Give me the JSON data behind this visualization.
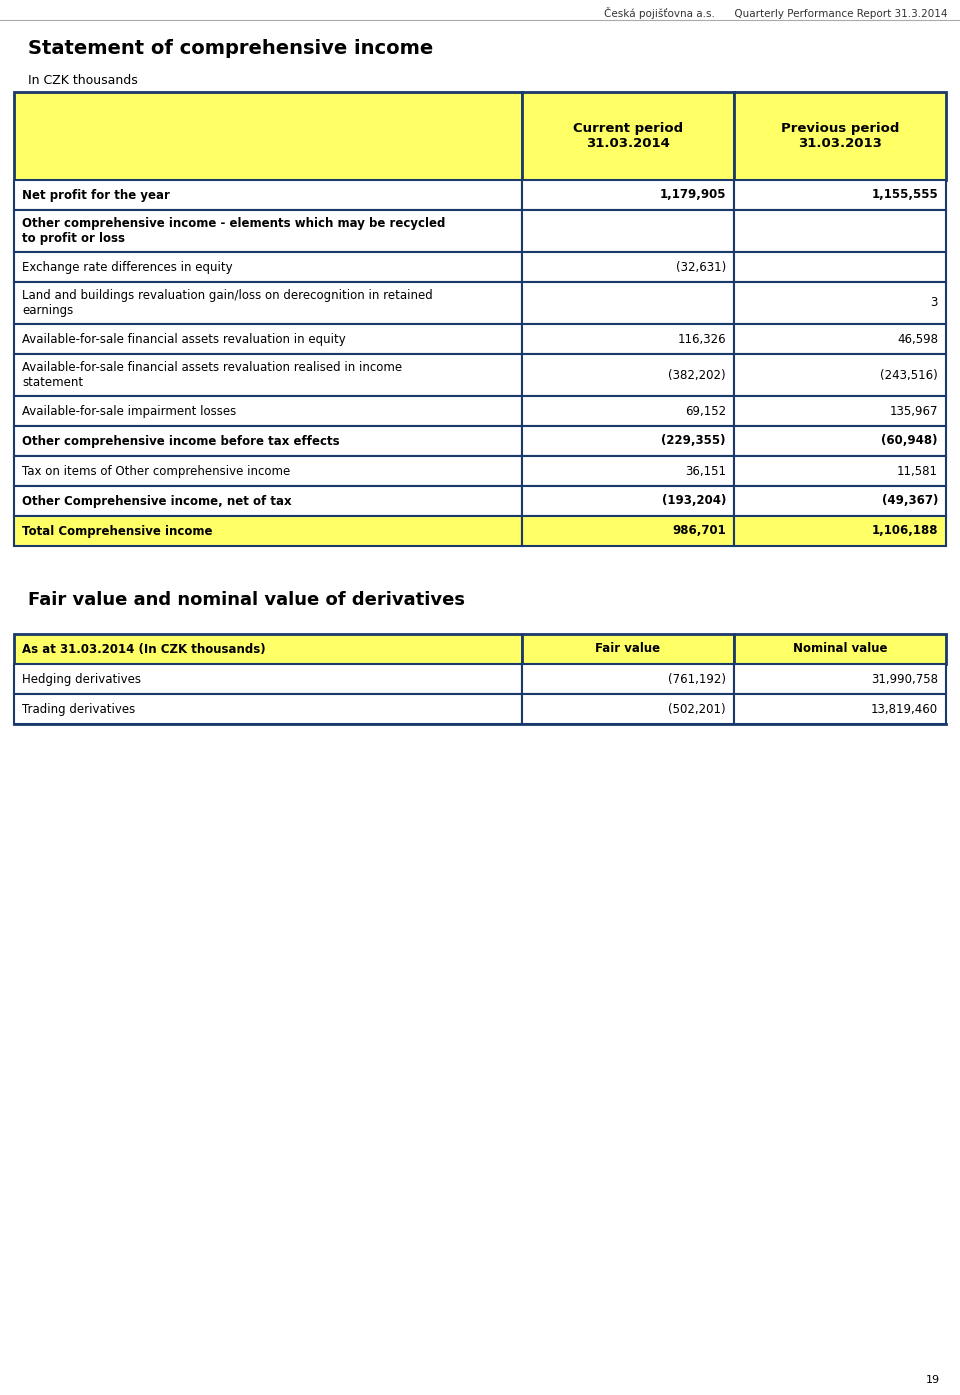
{
  "header_text": "Česká pojišťovna a.s.      Quarterly Performance Report 31.3.2014",
  "page_number": "19",
  "title1": "Statement of comprehensive income",
  "subtitle1": "In CZK thousands",
  "table1_rows": [
    {
      "label": "Net profit for the year",
      "col1": "1,179,905",
      "col2": "1,155,555",
      "bold": true,
      "bg": "white"
    },
    {
      "label": "Other comprehensive income - elements which may be recycled\nto profit or loss",
      "col1": "",
      "col2": "",
      "bold": true,
      "bg": "white"
    },
    {
      "label": "Exchange rate differences in equity",
      "col1": "(32,631)",
      "col2": "",
      "bold": false,
      "bg": "white"
    },
    {
      "label": "Land and buildings revaluation gain/loss on derecognition in retained\nearnings",
      "col1": "",
      "col2": "3",
      "bold": false,
      "bg": "white"
    },
    {
      "label": "Available-for-sale financial assets revaluation in equity",
      "col1": "116,326",
      "col2": "46,598",
      "bold": false,
      "bg": "white"
    },
    {
      "label": "Available-for-sale financial assets revaluation realised in income\nstatement",
      "col1": "(382,202)",
      "col2": "(243,516)",
      "bold": false,
      "bg": "white"
    },
    {
      "label": "Available-for-sale impairment losses",
      "col1": "69,152",
      "col2": "135,967",
      "bold": false,
      "bg": "white"
    },
    {
      "label": "Other comprehensive income before tax effects",
      "col1": "(229,355)",
      "col2": "(60,948)",
      "bold": true,
      "bg": "white"
    },
    {
      "label": "Tax on items of Other comprehensive income",
      "col1": "36,151",
      "col2": "11,581",
      "bold": false,
      "bg": "white"
    },
    {
      "label": "Other Comprehensive income, net of tax",
      "col1": "(193,204)",
      "col2": "(49,367)",
      "bold": true,
      "bg": "white"
    },
    {
      "label": "Total Comprehensive income",
      "col1": "986,701",
      "col2": "1,106,188",
      "bold": true,
      "bg": "yellow"
    }
  ],
  "title2": "Fair value and nominal value of derivatives",
  "table2_header": [
    "As at 31.03.2014 (In CZK thousands)",
    "Fair value",
    "Nominal value"
  ],
  "table2_rows": [
    {
      "label": "Hedging derivatives",
      "col1": "(761,192)",
      "col2": "31,990,758"
    },
    {
      "label": "Trading derivatives",
      "col1": "(502,201)",
      "col2": "13,819,460"
    }
  ],
  "yellow": "#FFFF66",
  "dark_border": "#1a3a6b",
  "fig_w": 9.6,
  "fig_h": 13.95,
  "dpi": 100
}
